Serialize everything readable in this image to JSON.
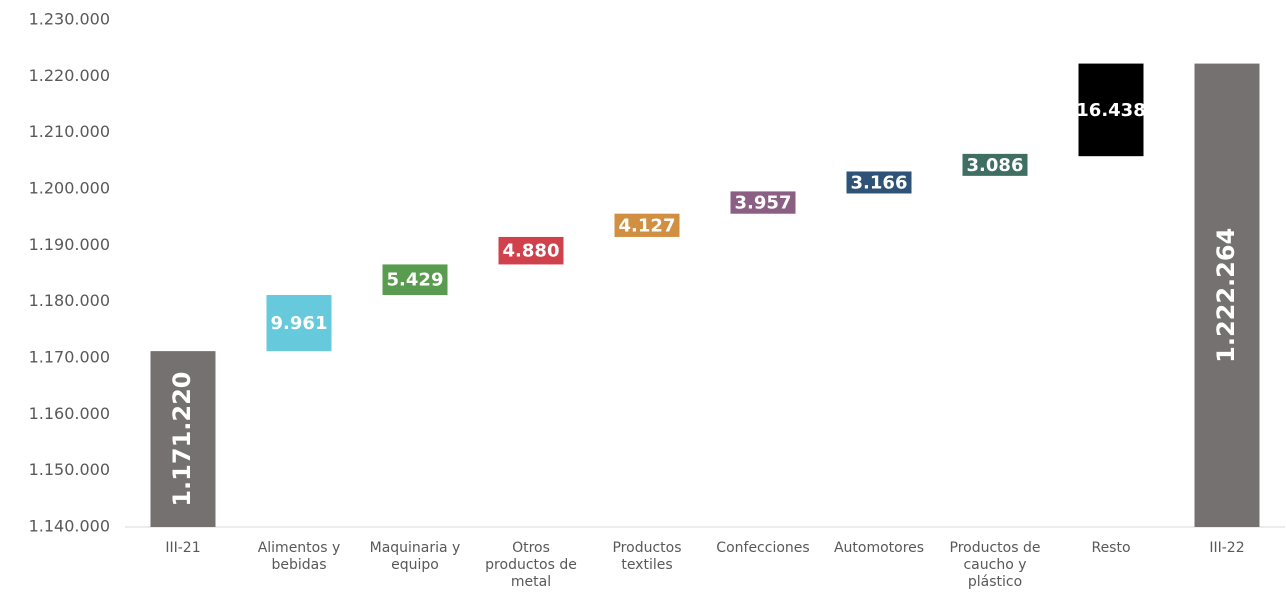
{
  "chart_data": {
    "type": "waterfall",
    "categories": [
      "III-21",
      "Alimentos y bebidas",
      "Maquinaria y equipo",
      "Otros productos de metal",
      "Productos textiles",
      "Confecciones",
      "Automotores",
      "Productos de caucho y plástico",
      "Resto",
      "III-22"
    ],
    "values": [
      1171220,
      9961,
      5429,
      4880,
      4127,
      3957,
      3166,
      3086,
      16438,
      1222264
    ],
    "value_labels": [
      "1.171.220",
      "9.961",
      "5.429",
      "4.880",
      "4.127",
      "3.957",
      "3.166",
      "3.086",
      "16.438",
      "1.222.264"
    ],
    "colors": [
      "#767171",
      "#66c9dc",
      "#5a9c4f",
      "#d1414b",
      "#d18f41",
      "#8b5e83",
      "#2e5377",
      "#3f6e63",
      "#000000",
      "#767171"
    ],
    "ylim": [
      1140000,
      1230000
    ],
    "yticks": [
      {
        "value": 1140000,
        "label": "1.140.000"
      },
      {
        "value": 1150000,
        "label": "1.150.000"
      },
      {
        "value": 1160000,
        "label": "1.160.000"
      },
      {
        "value": 1170000,
        "label": "1.170.000"
      },
      {
        "value": 1180000,
        "label": "1.180.000"
      },
      {
        "value": 1190000,
        "label": "1.190.000"
      },
      {
        "value": 1200000,
        "label": "1.200.000"
      },
      {
        "value": 1210000,
        "label": "1.210.000"
      },
      {
        "value": 1220000,
        "label": "1.220.000"
      },
      {
        "value": 1230000,
        "label": "1.230.000"
      }
    ]
  }
}
